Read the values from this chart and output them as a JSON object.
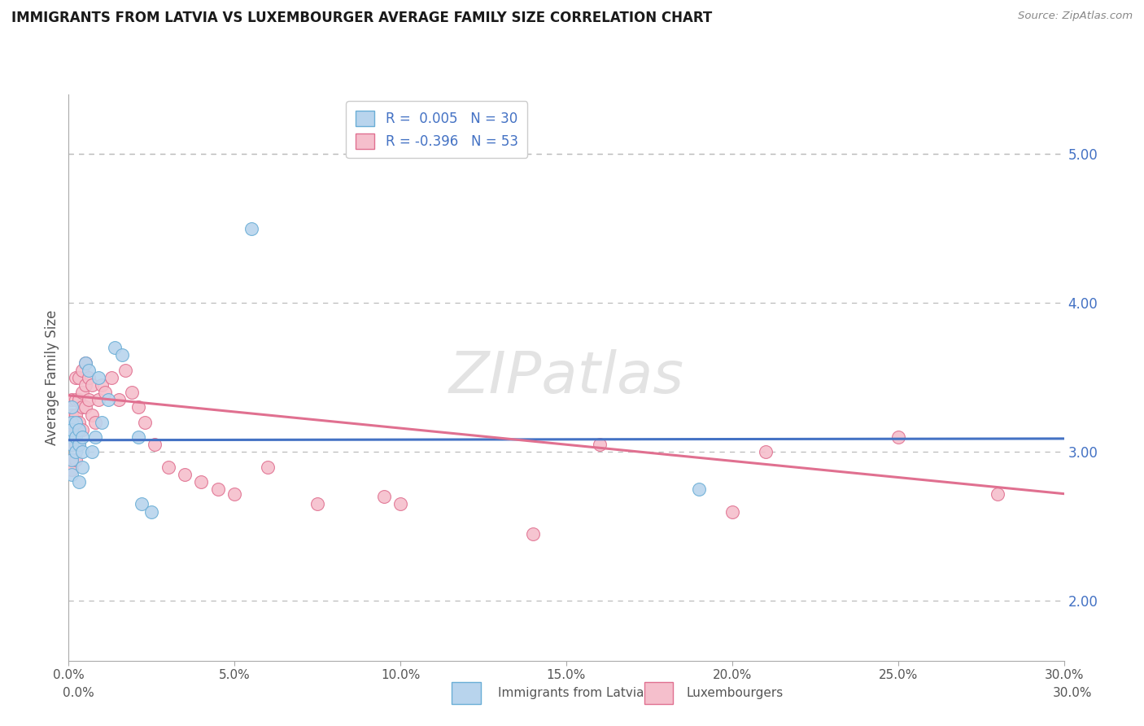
{
  "title": "IMMIGRANTS FROM LATVIA VS LUXEMBOURGER AVERAGE FAMILY SIZE CORRELATION CHART",
  "source": "Source: ZipAtlas.com",
  "ylabel": "Average Family Size",
  "xlim": [
    0.0,
    0.3
  ],
  "ylim": [
    1.6,
    5.4
  ],
  "yticks": [
    2.0,
    3.0,
    4.0,
    5.0
  ],
  "xticks": [
    0.0,
    0.05,
    0.1,
    0.15,
    0.2,
    0.25,
    0.3
  ],
  "xtick_labels": [
    "0.0%",
    "5.0%",
    "10.0%",
    "15.0%",
    "20.0%",
    "25.0%",
    "30.0%"
  ],
  "legend_1_label": "R =  0.005   N = 30",
  "legend_2_label": "R = -0.396   N = 53",
  "legend_1_color": "#b8d4ed",
  "legend_2_color": "#f5bfcc",
  "scatter_color_blue": "#b8d4ed",
  "scatter_color_pink": "#f5bfcc",
  "scatter_edge_blue": "#6aaed6",
  "scatter_edge_pink": "#e07090",
  "trend_color_blue": "#4472c4",
  "trend_color_pink": "#e07090",
  "watermark": "ZIPatlas",
  "background_color": "#ffffff",
  "grid_color": "#bbbbbb",
  "title_color": "#1a1a1a",
  "right_ytick_color": "#4472c4",
  "blue_points": [
    [
      0.001,
      3.2
    ],
    [
      0.001,
      3.1
    ],
    [
      0.001,
      2.95
    ],
    [
      0.001,
      2.85
    ],
    [
      0.001,
      3.05
    ],
    [
      0.001,
      3.15
    ],
    [
      0.001,
      3.3
    ],
    [
      0.002,
      3.0
    ],
    [
      0.002,
      3.1
    ],
    [
      0.002,
      3.2
    ],
    [
      0.003,
      3.05
    ],
    [
      0.003,
      2.8
    ],
    [
      0.003,
      3.15
    ],
    [
      0.004,
      3.1
    ],
    [
      0.004,
      3.0
    ],
    [
      0.004,
      2.9
    ],
    [
      0.005,
      3.6
    ],
    [
      0.006,
      3.55
    ],
    [
      0.007,
      3.0
    ],
    [
      0.008,
      3.1
    ],
    [
      0.009,
      3.5
    ],
    [
      0.01,
      3.2
    ],
    [
      0.012,
      3.35
    ],
    [
      0.014,
      3.7
    ],
    [
      0.016,
      3.65
    ],
    [
      0.021,
      3.1
    ],
    [
      0.055,
      4.5
    ],
    [
      0.022,
      2.65
    ],
    [
      0.025,
      2.6
    ],
    [
      0.19,
      2.75
    ]
  ],
  "pink_points": [
    [
      0.001,
      3.35
    ],
    [
      0.001,
      3.25
    ],
    [
      0.001,
      3.15
    ],
    [
      0.001,
      3.05
    ],
    [
      0.001,
      2.95
    ],
    [
      0.001,
      2.88
    ],
    [
      0.002,
      3.5
    ],
    [
      0.002,
      3.35
    ],
    [
      0.002,
      3.25
    ],
    [
      0.002,
      3.15
    ],
    [
      0.002,
      3.05
    ],
    [
      0.002,
      2.95
    ],
    [
      0.003,
      3.5
    ],
    [
      0.003,
      3.35
    ],
    [
      0.003,
      3.2
    ],
    [
      0.003,
      3.05
    ],
    [
      0.004,
      3.55
    ],
    [
      0.004,
      3.4
    ],
    [
      0.004,
      3.3
    ],
    [
      0.004,
      3.15
    ],
    [
      0.005,
      3.6
    ],
    [
      0.005,
      3.45
    ],
    [
      0.005,
      3.3
    ],
    [
      0.006,
      3.5
    ],
    [
      0.006,
      3.35
    ],
    [
      0.007,
      3.45
    ],
    [
      0.007,
      3.25
    ],
    [
      0.008,
      3.2
    ],
    [
      0.009,
      3.35
    ],
    [
      0.01,
      3.45
    ],
    [
      0.011,
      3.4
    ],
    [
      0.013,
      3.5
    ],
    [
      0.015,
      3.35
    ],
    [
      0.017,
      3.55
    ],
    [
      0.019,
      3.4
    ],
    [
      0.021,
      3.3
    ],
    [
      0.023,
      3.2
    ],
    [
      0.026,
      3.05
    ],
    [
      0.03,
      2.9
    ],
    [
      0.035,
      2.85
    ],
    [
      0.04,
      2.8
    ],
    [
      0.045,
      2.75
    ],
    [
      0.05,
      2.72
    ],
    [
      0.06,
      2.9
    ],
    [
      0.075,
      2.65
    ],
    [
      0.095,
      2.7
    ],
    [
      0.1,
      2.65
    ],
    [
      0.14,
      2.45
    ],
    [
      0.16,
      3.05
    ],
    [
      0.2,
      2.6
    ],
    [
      0.21,
      3.0
    ],
    [
      0.25,
      3.1
    ],
    [
      0.28,
      2.72
    ]
  ],
  "blue_trend": [
    3.08,
    3.09
  ],
  "pink_trend": [
    3.38,
    2.72
  ],
  "footer_label_1": "Immigrants from Latvia",
  "footer_label_2": "Luxembourgers"
}
